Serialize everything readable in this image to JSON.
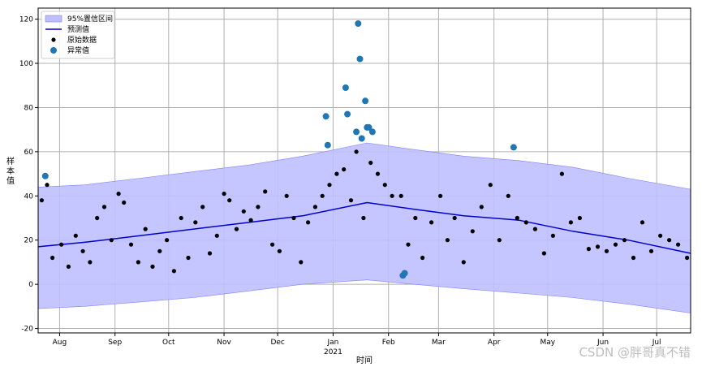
{
  "watermark": "CSDN @胖哥真不错",
  "chart_data": {
    "type": "scatter",
    "xlabel": "时间",
    "ylabel": "样本值",
    "x_start": "2020-07-20",
    "x_end": "2021-07-20",
    "xlim": [
      "2020-07-20",
      "2021-07-20"
    ],
    "ylim": [
      -22,
      125
    ],
    "yticks": [
      -20,
      0,
      20,
      40,
      60,
      80,
      100,
      120
    ],
    "xticks": [
      {
        "date": "2020-08-01",
        "label": "Aug"
      },
      {
        "date": "2020-09-01",
        "label": "Sep"
      },
      {
        "date": "2020-10-01",
        "label": "Oct"
      },
      {
        "date": "2020-11-01",
        "label": "Nov"
      },
      {
        "date": "2020-12-01",
        "label": "Dec"
      },
      {
        "date": "2021-01-01",
        "label": "Jan",
        "sublabel": "2021"
      },
      {
        "date": "2021-02-01",
        "label": "Feb"
      },
      {
        "date": "2021-03-01",
        "label": "Mar"
      },
      {
        "date": "2021-04-01",
        "label": "Apr"
      },
      {
        "date": "2021-05-01",
        "label": "May"
      },
      {
        "date": "2021-06-01",
        "label": "Jun"
      },
      {
        "date": "2021-07-01",
        "label": "Jul"
      }
    ],
    "grid": true,
    "legend_position": "top-left",
    "colors": {
      "band_fill": "#bfbfff",
      "band_edge": "#8080ff",
      "forecast": "#0000cc",
      "raw": "#000000",
      "anomaly": "#1f77b4"
    },
    "series": [
      {
        "name": "95%置信区间",
        "kind": "band",
        "x": [
          "2020-07-20",
          "2020-08-15",
          "2020-09-15",
          "2020-10-15",
          "2020-11-15",
          "2020-12-15",
          "2021-01-20",
          "2021-02-15",
          "2021-03-15",
          "2021-04-15",
          "2021-05-15",
          "2021-06-15",
          "2021-07-20"
        ],
        "lower": [
          -11,
          -10,
          -8,
          -6,
          -3,
          0,
          2,
          0,
          -2,
          -4,
          -6,
          -9,
          -13
        ],
        "upper": [
          44,
          45,
          48,
          51,
          54,
          58,
          64,
          61,
          58,
          56,
          53,
          48,
          43
        ]
      },
      {
        "name": "预测值",
        "kind": "line",
        "x": [
          "2020-07-20",
          "2020-08-15",
          "2020-09-15",
          "2020-10-15",
          "2020-11-15",
          "2020-12-15",
          "2021-01-20",
          "2021-02-15",
          "2021-03-15",
          "2021-04-15",
          "2021-05-15",
          "2021-06-15",
          "2021-07-20"
        ],
        "y": [
          17,
          19,
          22,
          25,
          28,
          31,
          37,
          34,
          31,
          29,
          24,
          20,
          14
        ]
      },
      {
        "name": "原始数据",
        "kind": "scatter",
        "x": [
          "2020-07-22",
          "2020-07-25",
          "2020-07-28",
          "2020-08-02",
          "2020-08-06",
          "2020-08-10",
          "2020-08-14",
          "2020-08-18",
          "2020-08-22",
          "2020-08-26",
          "2020-08-30",
          "2020-09-03",
          "2020-09-06",
          "2020-09-10",
          "2020-09-14",
          "2020-09-18",
          "2020-09-22",
          "2020-09-26",
          "2020-09-30",
          "2020-10-04",
          "2020-10-08",
          "2020-10-12",
          "2020-10-16",
          "2020-10-20",
          "2020-10-24",
          "2020-10-28",
          "2020-11-01",
          "2020-11-04",
          "2020-11-08",
          "2020-11-12",
          "2020-11-16",
          "2020-11-20",
          "2020-11-24",
          "2020-11-28",
          "2020-12-02",
          "2020-12-06",
          "2020-12-10",
          "2020-12-14",
          "2020-12-18",
          "2020-12-22",
          "2020-12-26",
          "2020-12-30",
          "2021-01-03",
          "2021-01-07",
          "2021-01-11",
          "2021-01-14",
          "2021-01-18",
          "2021-01-22",
          "2021-01-26",
          "2021-01-30",
          "2021-02-03",
          "2021-02-08",
          "2021-02-12",
          "2021-02-16",
          "2021-02-20",
          "2021-02-25",
          "2021-03-02",
          "2021-03-06",
          "2021-03-10",
          "2021-03-15",
          "2021-03-20",
          "2021-03-25",
          "2021-03-30",
          "2021-04-04",
          "2021-04-09",
          "2021-04-14",
          "2021-04-19",
          "2021-04-24",
          "2021-04-29",
          "2021-05-04",
          "2021-05-09",
          "2021-05-14",
          "2021-05-19",
          "2021-05-24",
          "2021-05-29",
          "2021-06-03",
          "2021-06-08",
          "2021-06-13",
          "2021-06-18",
          "2021-06-23",
          "2021-06-28",
          "2021-07-03",
          "2021-07-08",
          "2021-07-13",
          "2021-07-18"
        ],
        "y": [
          38,
          45,
          12,
          18,
          8,
          22,
          15,
          10,
          30,
          35,
          20,
          41,
          37,
          18,
          10,
          25,
          8,
          15,
          20,
          6,
          30,
          12,
          28,
          35,
          14,
          22,
          41,
          38,
          25,
          33,
          29,
          35,
          42,
          18,
          15,
          40,
          30,
          10,
          28,
          35,
          40,
          45,
          50,
          52,
          38,
          60,
          30,
          55,
          50,
          45,
          40,
          40,
          18,
          30,
          12,
          28,
          40,
          20,
          30,
          10,
          24,
          35,
          45,
          20,
          40,
          30,
          28,
          25,
          14,
          22,
          50,
          28,
          30,
          16,
          17,
          15,
          18,
          20,
          12,
          28,
          15,
          22,
          20,
          18,
          12
        ]
      },
      {
        "name": "异常值",
        "kind": "scatter",
        "x": [
          "2020-07-24",
          "2020-12-28",
          "2020-12-29",
          "2021-01-08",
          "2021-01-09",
          "2021-01-14",
          "2021-01-15",
          "2021-01-16",
          "2021-01-17",
          "2021-01-19",
          "2021-01-20",
          "2021-01-21",
          "2021-01-23",
          "2021-02-09",
          "2021-02-10",
          "2021-04-12"
        ],
        "y": [
          49,
          76,
          63,
          89,
          77,
          69,
          118,
          102,
          66,
          83,
          71,
          71,
          69,
          4,
          5,
          62
        ]
      }
    ]
  }
}
